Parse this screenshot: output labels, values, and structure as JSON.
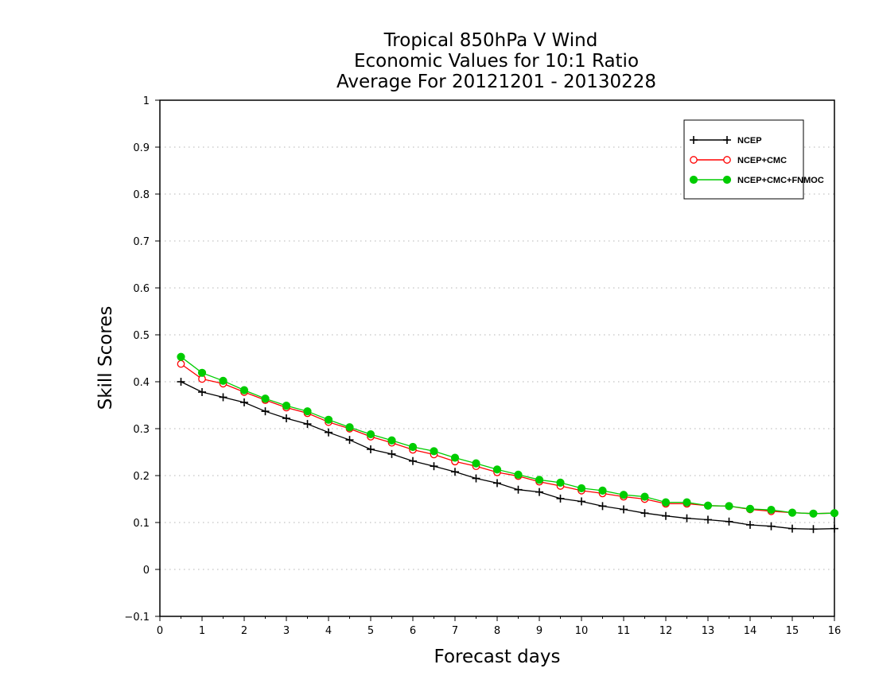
{
  "chart_data": {
    "type": "line",
    "title": [
      "Tropical 850hPa V Wind",
      "Economic Values for 10:1 Ratio",
      "Average For 20121201 - 20130228"
    ],
    "xlabel": "Forecast days",
    "ylabel": "Skill Scores",
    "xlim": [
      0,
      16
    ],
    "ylim": [
      -0.1,
      1
    ],
    "xticks": [
      0,
      1,
      2,
      3,
      4,
      5,
      6,
      7,
      8,
      9,
      10,
      11,
      12,
      13,
      14,
      15,
      16
    ],
    "yticks": [
      -0.1,
      0,
      0.1,
      0.2,
      0.3,
      0.4,
      0.5,
      0.6,
      0.7,
      0.8,
      0.9,
      1
    ],
    "ytick_labels": [
      "−0.1",
      "0",
      "0.1",
      "0.2",
      "0.3",
      "0.4",
      "0.5",
      "0.6",
      "0.7",
      "0.8",
      "0.9",
      "1"
    ],
    "grid": "horizontal dotted",
    "legend_position": "top-right",
    "x": [
      0.5,
      1,
      1.5,
      2,
      2.5,
      3,
      3.5,
      4,
      4.5,
      5,
      5.5,
      6,
      6.5,
      7,
      7.5,
      8,
      8.5,
      9,
      9.5,
      10,
      10.5,
      11,
      11.5,
      12,
      12.5,
      13,
      13.5,
      14,
      14.5,
      15,
      15.5,
      16
    ],
    "series": [
      {
        "name": "NCEP",
        "color": "#000000",
        "marker": "plus",
        "values": [
          0.4,
          0.378,
          0.367,
          0.356,
          0.337,
          0.322,
          0.31,
          0.292,
          0.276,
          0.256,
          0.246,
          0.231,
          0.22,
          0.208,
          0.194,
          0.184,
          0.17,
          0.165,
          0.151,
          0.145,
          0.135,
          0.128,
          0.12,
          0.114,
          0.109,
          0.106,
          0.102,
          0.095,
          0.092,
          0.087,
          0.086,
          0.087
        ]
      },
      {
        "name": "NCEP+CMC",
        "color": "#ff0000",
        "marker": "open-circle",
        "values": [
          0.438,
          0.406,
          0.396,
          0.378,
          0.361,
          0.345,
          0.333,
          0.314,
          0.3,
          0.283,
          0.27,
          0.255,
          0.245,
          0.23,
          0.22,
          0.207,
          0.199,
          0.187,
          0.178,
          0.168,
          0.162,
          0.155,
          0.15,
          0.14,
          0.14,
          0.136,
          0.135,
          0.128,
          0.124,
          0.121,
          0.119,
          0.12
        ]
      },
      {
        "name": "NCEP+CMC+FNMOC",
        "color": "#00cc00",
        "marker": "filled-circle",
        "values": [
          0.453,
          0.419,
          0.402,
          0.382,
          0.364,
          0.349,
          0.337,
          0.319,
          0.303,
          0.288,
          0.275,
          0.261,
          0.252,
          0.238,
          0.226,
          0.213,
          0.202,
          0.191,
          0.185,
          0.173,
          0.168,
          0.159,
          0.155,
          0.143,
          0.143,
          0.136,
          0.135,
          0.129,
          0.127,
          0.121,
          0.119,
          0.12
        ]
      }
    ]
  }
}
